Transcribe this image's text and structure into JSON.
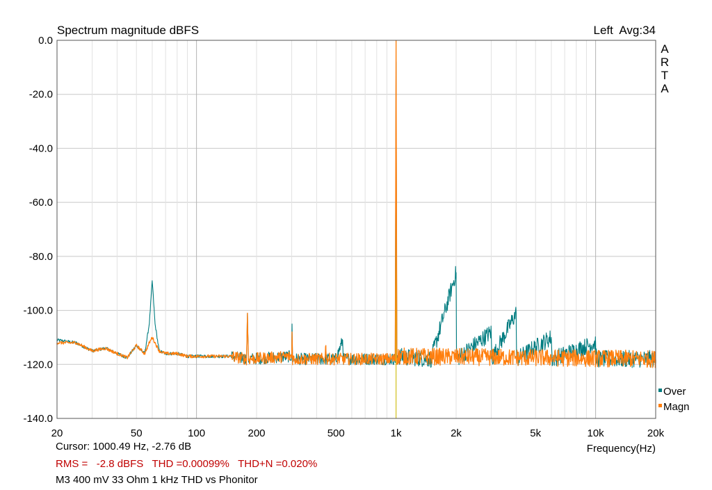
{
  "chart_data": {
    "type": "line",
    "title": "Spectrum magnitude dBFS",
    "channel_info": "Left  Avg:34",
    "watermark": [
      "A",
      "R",
      "T",
      "A"
    ],
    "xlabel": "Frequency(Hz)",
    "x_scale": "log",
    "xlim": [
      20,
      20000
    ],
    "ylim": [
      -140,
      0
    ],
    "grid": true,
    "legend_position": "right",
    "y_ticks": [
      "0.0",
      "-20.0",
      "-40.0",
      "-60.0",
      "-80.0",
      "-100.0",
      "-120.0",
      "-140.0"
    ],
    "y_tick_values": [
      0,
      -20,
      -40,
      -60,
      -80,
      -100,
      -120,
      -140
    ],
    "x_ticks": [
      "20",
      "50",
      "100",
      "200",
      "500",
      "1k",
      "2k",
      "5k",
      "10k",
      "20k"
    ],
    "x_tick_values": [
      20,
      50,
      100,
      200,
      500,
      1000,
      2000,
      5000,
      10000,
      20000
    ],
    "cursor_frequency": 1000,
    "noise_floor_dB": -118,
    "series": [
      {
        "name": "Over",
        "color": "#007c80",
        "points": [
          [
            20,
            -111
          ],
          [
            25,
            -112
          ],
          [
            30,
            -115
          ],
          [
            35,
            -114
          ],
          [
            40,
            -116
          ],
          [
            45,
            -117.5
          ],
          [
            50,
            -113
          ],
          [
            55,
            -116
          ],
          [
            58,
            -105
          ],
          [
            60,
            -89
          ],
          [
            62,
            -105
          ],
          [
            65,
            -115
          ],
          [
            70,
            -116
          ],
          [
            80,
            -116
          ],
          [
            90,
            -117
          ],
          [
            100,
            -117
          ],
          [
            150,
            -117
          ],
          [
            178,
            -118
          ],
          [
            180,
            -101
          ],
          [
            182,
            -118
          ],
          [
            300,
            -117
          ],
          [
            301,
            -105
          ],
          [
            303,
            -118
          ],
          [
            500,
            -118
          ],
          [
            540,
            -111
          ],
          [
            545,
            -118
          ],
          [
            990,
            -118
          ],
          [
            1000,
            -8
          ],
          [
            1010,
            -117
          ],
          [
            1500,
            -118
          ],
          [
            2000,
            -86
          ],
          [
            2010,
            -118
          ],
          [
            3000,
            -108
          ],
          [
            3020,
            -118
          ],
          [
            4000,
            -101
          ],
          [
            4020,
            -118
          ],
          [
            6000,
            -110
          ],
          [
            6050,
            -118
          ],
          [
            10000,
            -112
          ],
          [
            10100,
            -118
          ],
          [
            20000,
            -118
          ]
        ]
      },
      {
        "name": "Magn",
        "color": "#ff7f0e",
        "points": [
          [
            20,
            -112
          ],
          [
            25,
            -112
          ],
          [
            30,
            -115
          ],
          [
            35,
            -114
          ],
          [
            40,
            -116
          ],
          [
            45,
            -117.5
          ],
          [
            50,
            -113
          ],
          [
            55,
            -116
          ],
          [
            58,
            -112
          ],
          [
            60,
            -110
          ],
          [
            62,
            -112
          ],
          [
            65,
            -115
          ],
          [
            70,
            -116
          ],
          [
            80,
            -116
          ],
          [
            90,
            -117
          ],
          [
            100,
            -117
          ],
          [
            150,
            -117
          ],
          [
            178,
            -118
          ],
          [
            180,
            -101
          ],
          [
            182,
            -118
          ],
          [
            300,
            -117
          ],
          [
            301,
            -108
          ],
          [
            303,
            -118
          ],
          [
            440,
            -118
          ],
          [
            445,
            -113
          ],
          [
            450,
            -118
          ],
          [
            990,
            -118
          ],
          [
            1000,
            0
          ],
          [
            1010,
            -117
          ],
          [
            20000,
            -118
          ]
        ]
      }
    ]
  },
  "cursor_text": "Cursor: 1000.49 Hz, -2.76 dB",
  "measurements": "RMS =   -2.8 dBFS   THD =0.00099%   THD+N =0.020%",
  "caption": "M3 400 mV 33 Ohm 1 kHz THD vs Phonitor"
}
